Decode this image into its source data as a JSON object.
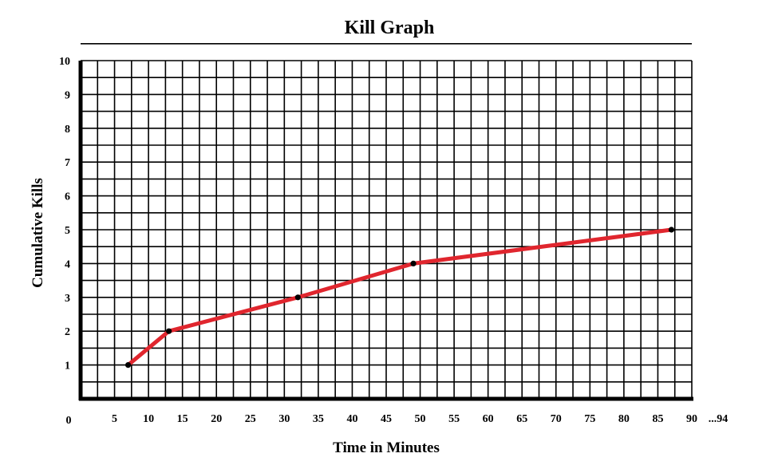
{
  "chart_data": {
    "type": "line",
    "title": "Kill Graph",
    "xlabel": "Time in Minutes",
    "ylabel": "Cumulative Kills",
    "xlim": [
      0,
      90
    ],
    "ylim": [
      0,
      10.5
    ],
    "x_ticks": [
      "0",
      "5",
      "10",
      "15",
      "20",
      "25",
      "30",
      "35",
      "40",
      "45",
      "50",
      "55",
      "60",
      "65",
      "70",
      "75",
      "80",
      "85",
      "90"
    ],
    "x_tick_extra": "...94",
    "y_ticks": [
      "1",
      "2",
      "3",
      "4",
      "5",
      "6",
      "7",
      "8",
      "9",
      "10"
    ],
    "grid": true,
    "series": [
      {
        "x": [
          7,
          13,
          32,
          49,
          87
        ],
        "y": [
          1,
          2,
          3,
          4,
          5
        ],
        "color": "#e0262e",
        "marker_color": "#000000"
      }
    ]
  }
}
